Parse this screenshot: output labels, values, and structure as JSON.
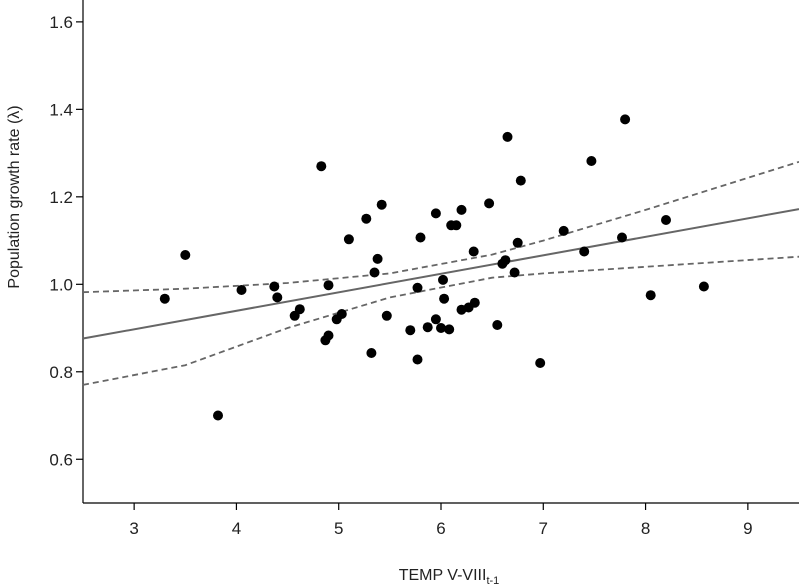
{
  "chart_data": {
    "type": "scatter",
    "title": "",
    "xlabel_main": "TEMP V-VIII",
    "xlabel_sub": "t-1",
    "ylabel": "Population growth rate (λ)",
    "xlim": [
      2.5,
      9.5
    ],
    "ylim": [
      0.5,
      1.65
    ],
    "xticks": [
      "3",
      "4",
      "5",
      "6",
      "7",
      "8",
      "9"
    ],
    "yticks": [
      "0.6",
      "0.8",
      "1.0",
      "1.2",
      "1.4",
      "1.6"
    ],
    "grid": false,
    "legend": "none",
    "colors": {
      "points": "#000000",
      "fit": "#666666",
      "ci": "#666666"
    },
    "points": [
      [
        3.3,
        0.967
      ],
      [
        3.5,
        1.067
      ],
      [
        3.82,
        0.7
      ],
      [
        4.05,
        0.987
      ],
      [
        4.37,
        0.995
      ],
      [
        4.4,
        0.97
      ],
      [
        4.57,
        0.928
      ],
      [
        4.62,
        0.943
      ],
      [
        4.83,
        1.27
      ],
      [
        4.87,
        0.872
      ],
      [
        4.9,
        0.998
      ],
      [
        4.9,
        0.883
      ],
      [
        4.98,
        0.92
      ],
      [
        5.03,
        0.932
      ],
      [
        5.1,
        1.103
      ],
      [
        5.27,
        1.15
      ],
      [
        5.32,
        0.843
      ],
      [
        5.35,
        1.027
      ],
      [
        5.38,
        1.058
      ],
      [
        5.42,
        1.182
      ],
      [
        5.47,
        0.928
      ],
      [
        5.7,
        0.895
      ],
      [
        5.77,
        0.992
      ],
      [
        5.77,
        0.828
      ],
      [
        5.8,
        1.107
      ],
      [
        5.87,
        0.902
      ],
      [
        5.95,
        1.162
      ],
      [
        5.95,
        0.92
      ],
      [
        6.0,
        0.9
      ],
      [
        6.02,
        1.01
      ],
      [
        6.03,
        0.967
      ],
      [
        6.08,
        0.897
      ],
      [
        6.1,
        1.135
      ],
      [
        6.15,
        1.135
      ],
      [
        6.2,
        1.17
      ],
      [
        6.2,
        0.942
      ],
      [
        6.27,
        0.947
      ],
      [
        6.32,
        1.075
      ],
      [
        6.33,
        0.958
      ],
      [
        6.47,
        1.185
      ],
      [
        6.55,
        0.907
      ],
      [
        6.6,
        1.047
      ],
      [
        6.63,
        1.055
      ],
      [
        6.65,
        1.337
      ],
      [
        6.72,
        1.027
      ],
      [
        6.75,
        1.095
      ],
      [
        6.78,
        1.237
      ],
      [
        6.97,
        0.82
      ],
      [
        7.2,
        1.122
      ],
      [
        7.4,
        1.075
      ],
      [
        7.47,
        1.282
      ],
      [
        7.77,
        1.107
      ],
      [
        7.8,
        1.377
      ],
      [
        8.05,
        0.975
      ],
      [
        8.2,
        1.147
      ],
      [
        8.57,
        0.995
      ]
    ],
    "fit_line": [
      [
        2.5,
        0.876
      ],
      [
        9.5,
        1.172
      ]
    ],
    "ci_upper": [
      [
        2.5,
        0.982
      ],
      [
        3.5,
        0.99
      ],
      [
        4.5,
        1.003
      ],
      [
        5.5,
        1.025
      ],
      [
        6.5,
        1.068
      ],
      [
        7.0,
        1.1
      ],
      [
        8.0,
        1.17
      ],
      [
        9.5,
        1.28
      ]
    ],
    "ci_lower": [
      [
        2.5,
        0.77
      ],
      [
        3.5,
        0.815
      ],
      [
        4.5,
        0.9
      ],
      [
        5.5,
        0.97
      ],
      [
        6.5,
        1.015
      ],
      [
        7.0,
        1.025
      ],
      [
        8.0,
        1.04
      ],
      [
        9.5,
        1.063
      ]
    ]
  }
}
